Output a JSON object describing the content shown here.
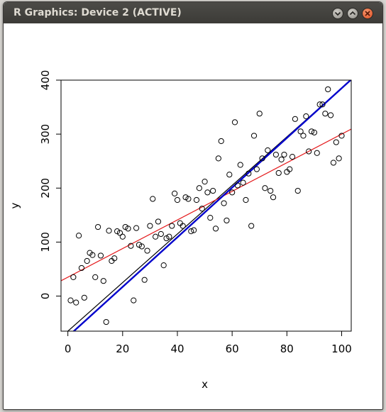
{
  "window": {
    "title": "R Graphics: Device 2 (ACTIVE)",
    "buttons": {
      "minimize": "minimize-icon",
      "maximize": "maximize-icon",
      "close": "close-icon"
    }
  },
  "colors": {
    "points": "#000000",
    "line_black": "#000000",
    "line_red": "#e41a1c",
    "line_blue": "#0000cc"
  },
  "chart_data": {
    "type": "scatter",
    "title": "",
    "xlabel": "x",
    "ylabel": "y",
    "xlim": [
      0,
      100
    ],
    "ylim": [
      -65,
      400
    ],
    "xticks": [
      "0",
      "20",
      "40",
      "60",
      "80",
      "100"
    ],
    "yticks": [
      "0",
      "100",
      "200",
      "300",
      "400"
    ],
    "grid": false,
    "points": {
      "x": [
        1,
        2,
        3,
        4,
        5,
        6,
        7,
        8,
        9,
        10,
        11,
        12,
        13,
        14,
        15,
        16,
        17,
        18,
        19,
        20,
        21,
        22,
        23,
        24,
        25,
        26,
        27,
        28,
        29,
        30,
        31,
        32,
        33,
        34,
        35,
        36,
        37,
        38,
        39,
        40,
        41,
        42,
        43,
        44,
        45,
        46,
        47,
        48,
        49,
        50,
        51,
        52,
        53,
        54,
        55,
        56,
        57,
        58,
        59,
        60,
        61,
        62,
        63,
        64,
        65,
        66,
        67,
        68,
        69,
        70,
        71,
        72,
        73,
        74,
        75,
        76,
        77,
        78,
        79,
        80,
        81,
        82,
        83,
        84,
        85,
        86,
        87,
        88,
        89,
        90,
        91,
        92,
        93,
        94,
        95,
        96,
        97,
        98,
        99,
        100
      ],
      "y": [
        -8,
        35,
        -12,
        112,
        52,
        -3,
        65,
        80,
        76,
        35,
        128,
        75,
        28,
        -48,
        121,
        65,
        70,
        120,
        117,
        110,
        128,
        125,
        93,
        -8,
        126,
        95,
        92,
        30,
        84,
        130,
        180,
        110,
        138,
        115,
        57,
        107,
        110,
        130,
        190,
        178,
        135,
        130,
        183,
        180,
        120,
        122,
        178,
        200,
        162,
        212,
        192,
        145,
        195,
        125,
        255,
        287,
        172,
        140,
        225,
        192,
        322,
        205,
        243,
        210,
        178,
        227,
        130,
        297,
        235,
        338,
        255,
        200,
        270,
        195,
        183,
        262,
        228,
        253,
        262,
        230,
        235,
        258,
        328,
        195,
        305,
        297,
        333,
        268,
        305,
        303,
        265,
        355,
        355,
        338,
        383,
        335,
        247,
        285,
        255,
        297
      ]
    },
    "lines": [
      {
        "color": "black",
        "intercept": -65,
        "slope": 4.5
      },
      {
        "color": "red",
        "intercept": 35,
        "slope": 2.65
      },
      {
        "color": "blue",
        "intercept": -75,
        "slope": 4.6
      }
    ]
  }
}
